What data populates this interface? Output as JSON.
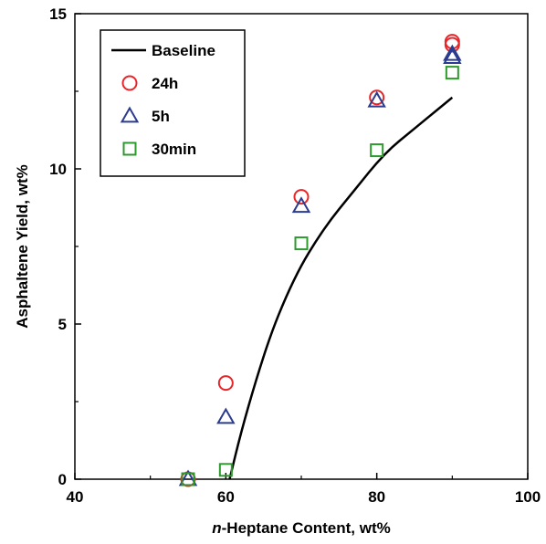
{
  "chart_data": {
    "type": "scatter",
    "xlabel_prefix": "n",
    "xlabel_rest": "-Heptane Content, wt%",
    "ylabel": "Asphaltene Yield, wt%",
    "xlim": [
      40,
      100
    ],
    "ylim": [
      0,
      15
    ],
    "x_ticks": [
      40,
      60,
      80,
      100
    ],
    "y_ticks": [
      0,
      5,
      10,
      15
    ],
    "legend_position": "top-left",
    "grid": false,
    "series": [
      {
        "name": "Baseline",
        "kind": "line",
        "color": "#000000",
        "points": [
          [
            60.5,
            0.0
          ],
          [
            62,
            1.5
          ],
          [
            64,
            3.2
          ],
          [
            66,
            4.7
          ],
          [
            68,
            5.9
          ],
          [
            70,
            6.9
          ],
          [
            72,
            7.7
          ],
          [
            74,
            8.4
          ],
          [
            76,
            9.0
          ],
          [
            78,
            9.6
          ],
          [
            80,
            10.2
          ],
          [
            82,
            10.7
          ],
          [
            84,
            11.1
          ],
          [
            86,
            11.5
          ],
          [
            88,
            11.9
          ],
          [
            90,
            12.3
          ]
        ]
      },
      {
        "name": "24h",
        "kind": "scatter",
        "marker": "circle",
        "color": "#e8262a",
        "points": [
          [
            55,
            0.0
          ],
          [
            60,
            3.1
          ],
          [
            70,
            9.1
          ],
          [
            80,
            12.3
          ],
          [
            90,
            14.0
          ],
          [
            90,
            14.1
          ]
        ]
      },
      {
        "name": "5h",
        "kind": "scatter",
        "marker": "triangle",
        "color": "#2b3b8f",
        "points": [
          [
            55,
            0.0
          ],
          [
            60,
            2.0
          ],
          [
            70,
            8.8
          ],
          [
            80,
            12.2
          ],
          [
            90,
            13.6
          ],
          [
            90,
            13.7
          ]
        ]
      },
      {
        "name": "30min",
        "kind": "scatter",
        "marker": "square",
        "color": "#2e9a2e",
        "points": [
          [
            55,
            0.0
          ],
          [
            60,
            0.3
          ],
          [
            70,
            7.6
          ],
          [
            80,
            10.6
          ],
          [
            90,
            13.1
          ]
        ]
      }
    ]
  }
}
